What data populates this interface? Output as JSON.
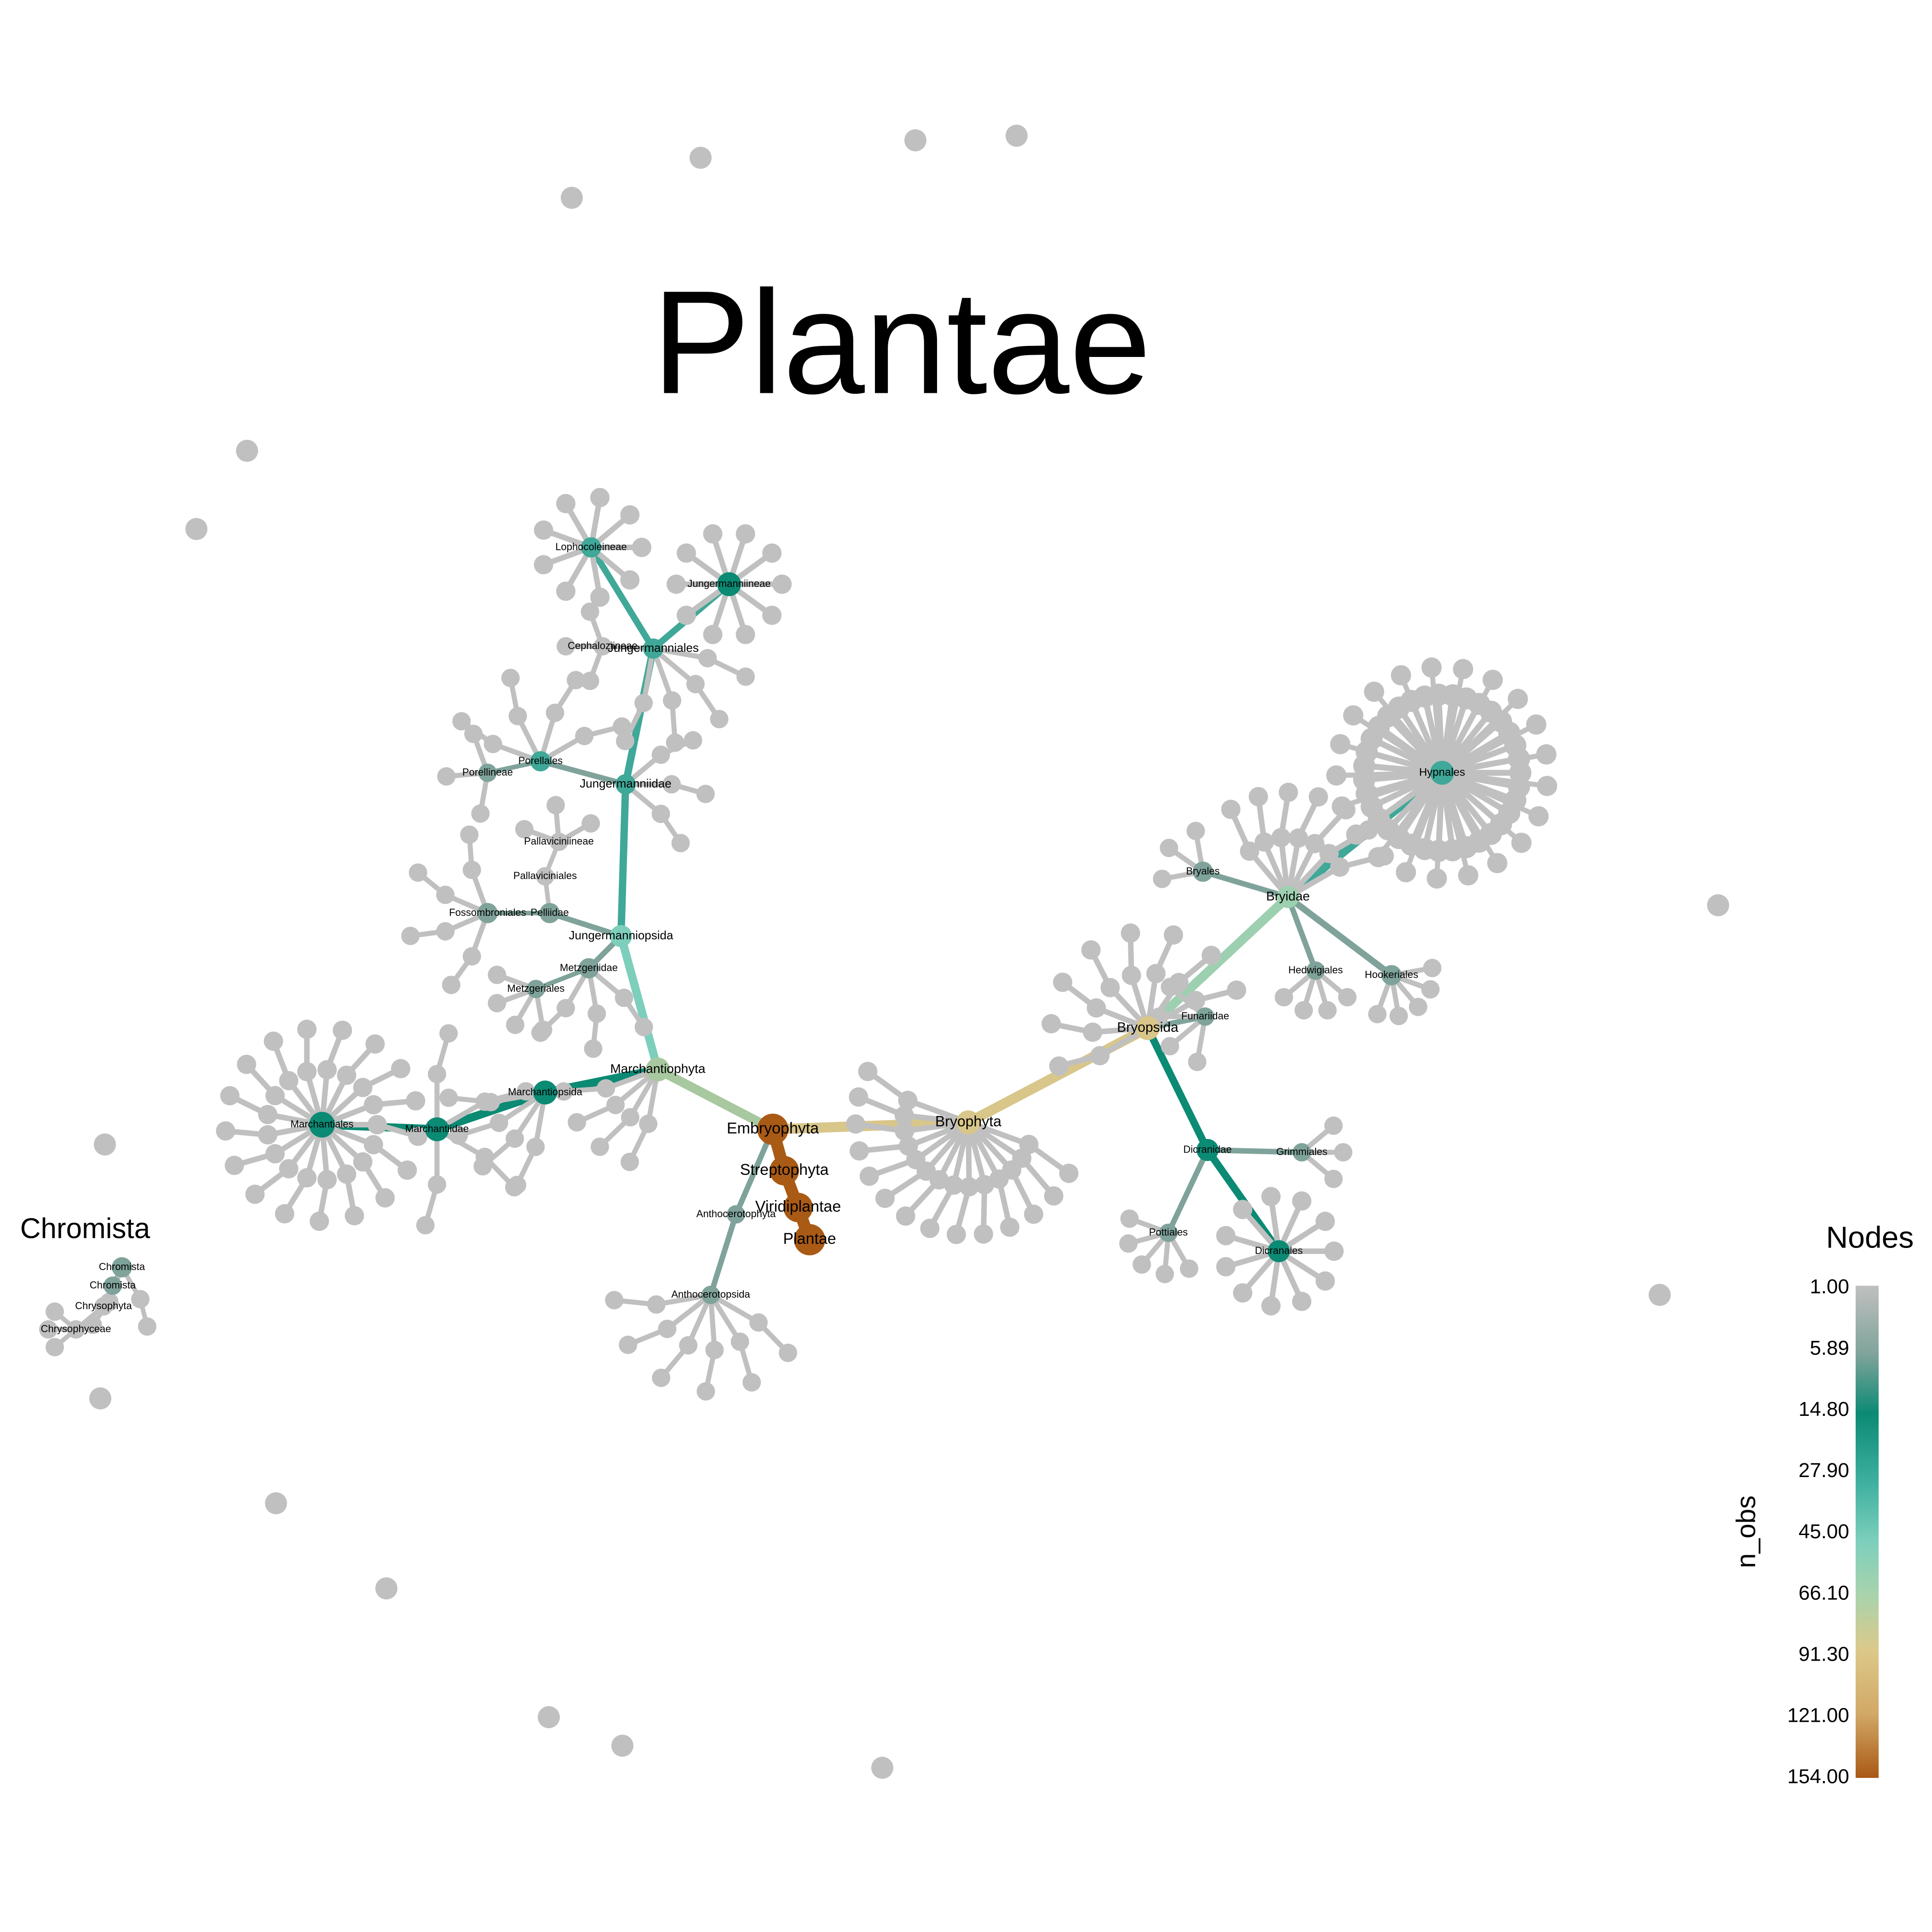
{
  "title": "Plantae",
  "subtitle": "Chromista",
  "legend": {
    "title": "Nodes",
    "variable": "n_obs",
    "ticks": [
      "1.00",
      "5.89",
      "14.80",
      "27.90",
      "45.00",
      "66.10",
      "91.30",
      "121.00",
      "154.00"
    ],
    "colors": [
      "#c0c0c0",
      "#7fa39a",
      "#0b8a74",
      "#3fb0a0",
      "#7dcfbc",
      "#a9d3ac",
      "#dcc98a",
      "#d2a866",
      "#a95a15"
    ]
  },
  "colors": {
    "grey": "#c0c0c0",
    "brown": "#a95a15",
    "sand": "#d8c68a",
    "sage": "#a8c8a0",
    "mint": "#7dcfbc",
    "teal": "#3fa898",
    "darkteal": "#0b8a74",
    "greyteal": "#7fa39a",
    "mintlight": "#9dd0b0"
  },
  "chart_data": {
    "type": "tree",
    "nodes": [
      {
        "id": "Plantae",
        "label": "Plantae",
        "n_obs": 154
      },
      {
        "id": "Viridiplantae",
        "label": "Viridiplantae",
        "n_obs": 154
      },
      {
        "id": "Streptophyta",
        "label": "Streptophyta",
        "n_obs": 154
      },
      {
        "id": "Embryophyta",
        "label": "Embryophyta",
        "n_obs": 154
      },
      {
        "id": "Bryophyta",
        "label": "Bryophyta",
        "n_obs": 80
      },
      {
        "id": "Bryopsida",
        "label": "Bryopsida",
        "n_obs": 75
      },
      {
        "id": "Bryidae",
        "label": "Bryidae",
        "n_obs": 55
      },
      {
        "id": "Hypnales",
        "label": "Hypnales",
        "n_obs": 35
      },
      {
        "id": "Dicranidae",
        "label": "Dicranidae",
        "n_obs": 14
      },
      {
        "id": "Dicranales",
        "label": "Dicranales",
        "n_obs": 12
      },
      {
        "id": "Grimmiales",
        "label": "Grimmiales",
        "n_obs": 4
      },
      {
        "id": "Pottiales",
        "label": "Pottiales",
        "n_obs": 3
      },
      {
        "id": "Funariidae",
        "label": "Funariidae",
        "n_obs": 3
      },
      {
        "id": "Bryales",
        "label": "Bryales",
        "n_obs": 6
      },
      {
        "id": "Hedwigiales",
        "label": "Hedwigiales",
        "n_obs": 3
      },
      {
        "id": "Hookeriales",
        "label": "Hookeriales",
        "n_obs": 10
      },
      {
        "id": "Marchantiophyta",
        "label": "Marchantiophyta",
        "n_obs": 66
      },
      {
        "id": "Jungermanniopsida",
        "label": "Jungermanniopsida",
        "n_obs": 45
      },
      {
        "id": "Jungermanniidae",
        "label": "Jungermanniidae",
        "n_obs": 30
      },
      {
        "id": "Jungermanniales",
        "label": "Jungermanniales",
        "n_obs": 20
      },
      {
        "id": "Lophocoleineae",
        "label": "Lophocoleineae",
        "n_obs": 8
      },
      {
        "id": "Jungermanniineae",
        "label": "Jungermanniineae",
        "n_obs": 12
      },
      {
        "id": "Cephaloziineae",
        "label": "Cephaloziineae",
        "n_obs": 2
      },
      {
        "id": "Porellales",
        "label": "Porellales",
        "n_obs": 8
      },
      {
        "id": "Porellineae",
        "label": "Porellineae",
        "n_obs": 3
      },
      {
        "id": "Pelliidae",
        "label": "Pelliidae",
        "n_obs": 6
      },
      {
        "id": "Pallaviciniales",
        "label": "Pallaviciniales",
        "n_obs": 2
      },
      {
        "id": "Pallaviciniineae",
        "label": "Pallaviciniineae",
        "n_obs": 2
      },
      {
        "id": "Fossombroniales",
        "label": "Fossombroniales",
        "n_obs": 3
      },
      {
        "id": "Metzgeriidae",
        "label": "Metzgeriidae",
        "n_obs": 5
      },
      {
        "id": "Metzgeriales",
        "label": "Metzgeriales",
        "n_obs": 4
      },
      {
        "id": "Marchantiopsida",
        "label": "Marchantiopsida",
        "n_obs": 14
      },
      {
        "id": "Marchantiidae",
        "label": "Marchantiidae",
        "n_obs": 14
      },
      {
        "id": "Marchantiales",
        "label": "Marchantiales",
        "n_obs": 14
      },
      {
        "id": "Anthocerotophyta",
        "label": "Anthocerotophyta",
        "n_obs": 5
      },
      {
        "id": "Anthocerotopsida",
        "label": "Anthocerotopsida",
        "n_obs": 5
      },
      {
        "id": "Chromista1",
        "label": "Chromista",
        "n_obs": 4
      },
      {
        "id": "Chromista2",
        "label": "Chromista",
        "n_obs": 3
      },
      {
        "id": "Chrysophyta",
        "label": "Chrysophyta",
        "n_obs": 2
      },
      {
        "id": "Chrysophyceae",
        "label": "Chrysophyceae",
        "n_obs": 2
      }
    ]
  }
}
